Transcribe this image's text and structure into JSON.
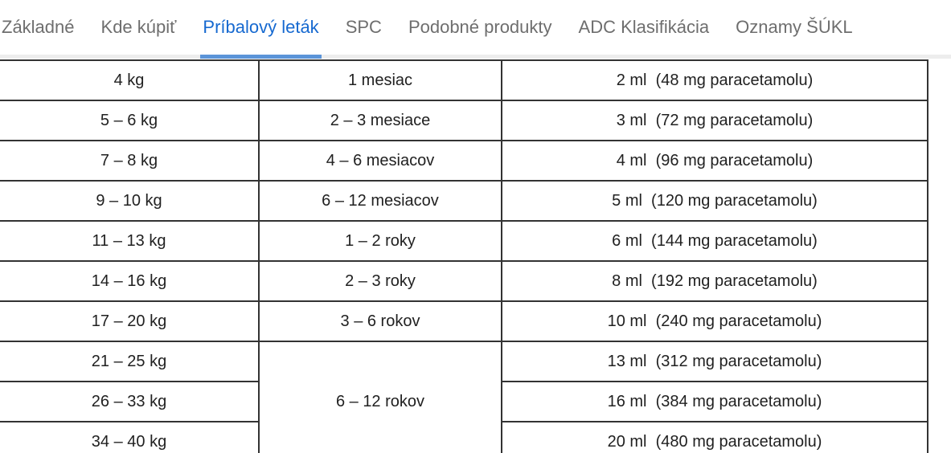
{
  "theme": {
    "active_tab_color": "#1669d0",
    "underline_color": "#5b94d8",
    "inactive_tab_color": "#6e6e6e",
    "tabbar_line_color": "#ededed",
    "table_border_color": "#333333",
    "table_text_color": "#212121"
  },
  "tabs": {
    "items": [
      {
        "label": "Základné",
        "active": false
      },
      {
        "label": "Kde kúpiť",
        "active": false
      },
      {
        "label": "Príbalový leták",
        "active": true
      },
      {
        "label": "SPC",
        "active": false
      },
      {
        "label": "Podobné produkty",
        "active": false
      },
      {
        "label": "ADC Klasifikácia",
        "active": false
      },
      {
        "label": "Oznamy ŠÚKL",
        "active": false
      }
    ]
  },
  "dosage_table": {
    "rows": [
      {
        "weight": "4 kg",
        "age": "1 mesiac",
        "dose": "2 ml  (48 mg paracetamolu)"
      },
      {
        "weight": "5 – 6 kg",
        "age": "2 – 3 mesiace",
        "dose": "3 ml  (72 mg paracetamolu)"
      },
      {
        "weight": "7 – 8 kg",
        "age": "4 – 6 mesiacov",
        "dose": "4 ml  (96 mg paracetamolu)"
      },
      {
        "weight": "9 – 10 kg",
        "age": "6 – 12 mesiacov",
        "dose": "5 ml  (120 mg paracetamolu)"
      },
      {
        "weight": "11 – 13 kg",
        "age": "1 – 2 roky",
        "dose": "6 ml  (144 mg paracetamolu)"
      },
      {
        "weight": "14 – 16 kg",
        "age": "2 – 3 roky",
        "dose": "8 ml  (192 mg paracetamolu)"
      },
      {
        "weight": "17 – 20 kg",
        "age": "3 – 6 rokov",
        "dose": "10 ml  (240 mg paracetamolu)"
      },
      {
        "weight": "21 – 25 kg",
        "age": "6 – 12 rokov",
        "age_rowspan": 3,
        "dose": "13 ml  (312 mg paracetamolu)"
      },
      {
        "weight": "26 – 33 kg",
        "age": null,
        "dose": "16 ml  (384 mg paracetamolu)"
      },
      {
        "weight": "34 – 40 kg",
        "age": null,
        "dose": "20 ml  (480 mg paracetamolu)"
      }
    ]
  }
}
